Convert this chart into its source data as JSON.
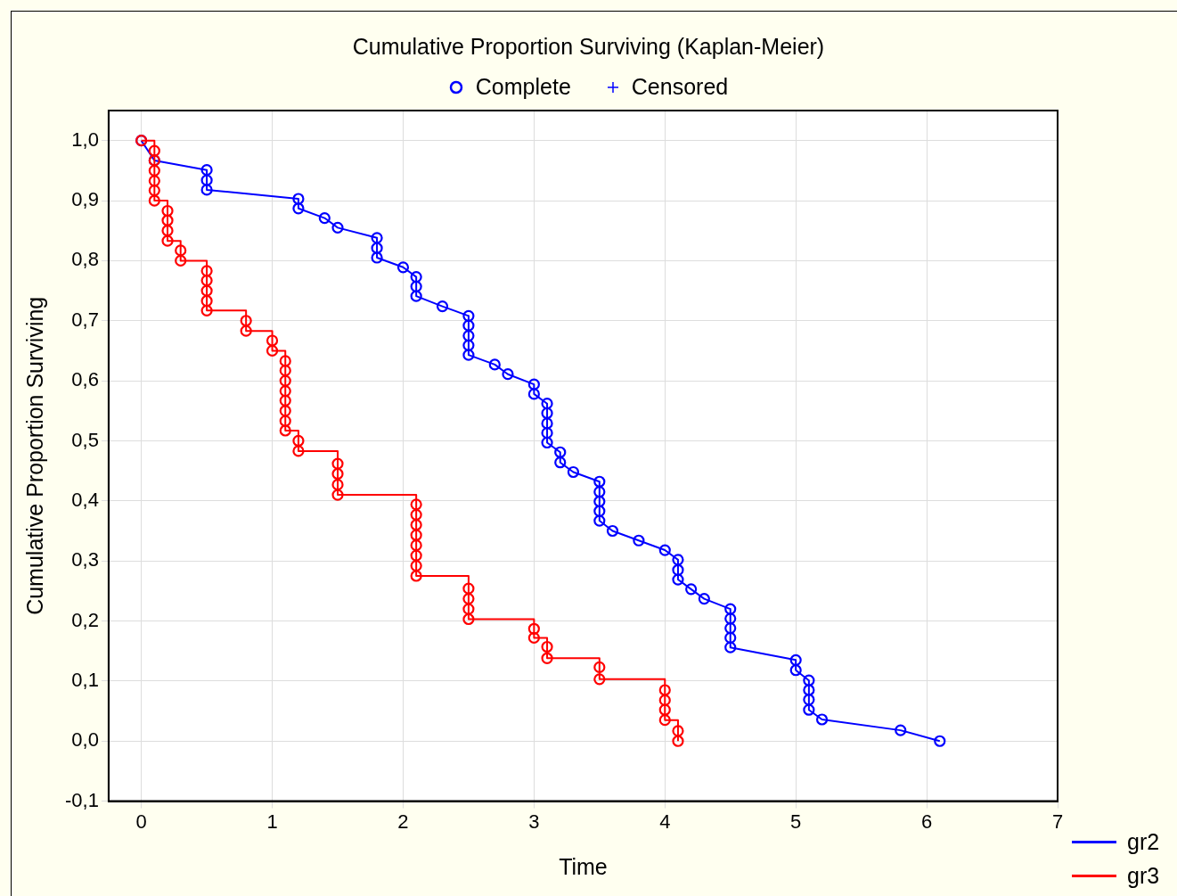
{
  "chart_data": {
    "type": "line",
    "title": "Cumulative Proportion Surviving (Kaplan-Meier)",
    "xlabel": "Time",
    "ylabel": "Cumulative Proportion Surviving",
    "annotations": [
      "Complete",
      "Censored"
    ],
    "xlim": [
      -0.25,
      7
    ],
    "xticks": [
      0,
      1,
      2,
      3,
      4,
      5,
      6,
      7
    ],
    "ylim": [
      -0.1,
      1.05
    ],
    "yticks": [
      {
        "value": -0.1,
        "label": "-0,1"
      },
      {
        "value": 0,
        "label": "0,0"
      },
      {
        "value": 0.1,
        "label": "0,1"
      },
      {
        "value": 0.2,
        "label": "0,2"
      },
      {
        "value": 0.3,
        "label": "0,3"
      },
      {
        "value": 0.4,
        "label": "0,4"
      },
      {
        "value": 0.5,
        "label": "0,5"
      },
      {
        "value": 0.6,
        "label": "0,6"
      },
      {
        "value": 0.7,
        "label": "0,7"
      },
      {
        "value": 0.8,
        "label": "0,8"
      },
      {
        "value": 0.9,
        "label": "0,9"
      },
      {
        "value": 1,
        "label": "1,0"
      }
    ],
    "grid": true,
    "legend": "bottom right",
    "marker": "circle",
    "line_style": "solid",
    "series": [
      {
        "name": "gr2",
        "type": "line",
        "color": "#0000ff",
        "x": [
          0,
          0.1,
          0.5,
          0.5,
          0.5,
          1.2,
          1.2,
          1.4,
          1.5,
          1.8,
          1.8,
          1.8,
          2.0,
          2.1,
          2.1,
          2.1,
          2.3,
          2.5,
          2.5,
          2.5,
          2.5,
          2.5,
          2.7,
          2.8,
          3.0,
          3.0,
          3.1,
          3.1,
          3.1,
          3.1,
          3.1,
          3.2,
          3.2,
          3.3,
          3.5,
          3.5,
          3.5,
          3.5,
          3.5,
          3.6,
          3.8,
          4.0,
          4.1,
          4.1,
          4.1,
          4.2,
          4.3,
          4.5,
          4.5,
          4.5,
          4.5,
          4.5,
          5.0,
          5.0,
          5.1,
          5.1,
          5.1,
          5.1,
          5.2,
          5.8,
          6.1
        ],
        "values": [
          1,
          0.967,
          0.951,
          0.934,
          0.918,
          0.903,
          0.887,
          0.871,
          0.855,
          0.838,
          0.821,
          0.805,
          0.789,
          0.773,
          0.757,
          0.741,
          0.724,
          0.708,
          0.692,
          0.675,
          0.659,
          0.643,
          0.627,
          0.611,
          0.594,
          0.578,
          0.562,
          0.546,
          0.529,
          0.513,
          0.497,
          0.481,
          0.464,
          0.448,
          0.432,
          0.415,
          0.399,
          0.383,
          0.367,
          0.35,
          0.334,
          0.318,
          0.302,
          0.285,
          0.269,
          0.253,
          0.237,
          0.22,
          0.204,
          0.188,
          0.172,
          0.156,
          0.135,
          0.118,
          0.101,
          0.085,
          0.069,
          0.052,
          0.036,
          0.018,
          0
        ]
      },
      {
        "name": "gr3",
        "type": "step",
        "color": "#ff0000",
        "x": [
          0,
          0.1,
          0.1,
          0.1,
          0.1,
          0.1,
          0.1,
          0.2,
          0.2,
          0.2,
          0.2,
          0.3,
          0.3,
          0.5,
          0.5,
          0.5,
          0.5,
          0.5,
          0.8,
          0.8,
          1.0,
          1.0,
          1.1,
          1.1,
          1.1,
          1.1,
          1.1,
          1.1,
          1.1,
          1.1,
          1.2,
          1.2,
          1.5,
          1.5,
          1.5,
          1.5,
          2.1,
          2.1,
          2.1,
          2.1,
          2.1,
          2.1,
          2.1,
          2.1,
          2.5,
          2.5,
          2.5,
          2.5,
          3.0,
          3.0,
          3.1,
          3.1,
          3.5,
          3.5,
          4.0,
          4.0,
          4.0,
          4.0,
          4.1,
          4.1
        ],
        "values": [
          1,
          0.983,
          0.967,
          0.95,
          0.933,
          0.917,
          0.9,
          0.883,
          0.867,
          0.85,
          0.833,
          0.817,
          0.8,
          0.783,
          0.767,
          0.75,
          0.733,
          0.717,
          0.7,
          0.683,
          0.667,
          0.65,
          0.633,
          0.617,
          0.6,
          0.583,
          0.567,
          0.55,
          0.533,
          0.517,
          0.5,
          0.483,
          0.462,
          0.445,
          0.427,
          0.41,
          0.394,
          0.377,
          0.36,
          0.343,
          0.326,
          0.309,
          0.292,
          0.275,
          0.254,
          0.237,
          0.22,
          0.203,
          0.187,
          0.172,
          0.157,
          0.138,
          0.123,
          0.103,
          0.085,
          0.068,
          0.052,
          0.035,
          0.017,
          0
        ]
      }
    ]
  }
}
